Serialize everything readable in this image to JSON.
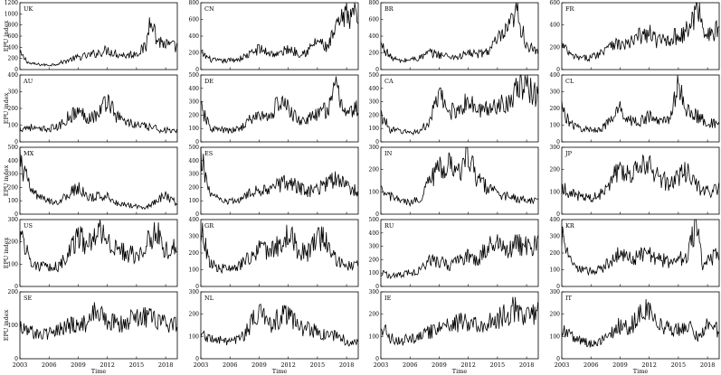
{
  "figure": {
    "type": "line",
    "ylabel": "EPU index",
    "xlabel": "Time",
    "x_tick_labels": [
      "2003",
      "2006",
      "2009",
      "2012",
      "2015",
      "2018"
    ],
    "colors": {
      "line": "#000000",
      "frame": "#000000",
      "background": "#ffffff"
    }
  },
  "chart_data": [
    {
      "type": "line",
      "label": "UK",
      "ylim": [
        0,
        1200
      ],
      "yticks": [
        0,
        200,
        400,
        600,
        800,
        1000,
        1200
      ],
      "x": [
        2003,
        2004,
        2005,
        2006,
        2007,
        2008,
        2009,
        2010,
        2011,
        2012,
        2013,
        2014,
        2015,
        2016,
        2016.5,
        2017,
        2018,
        2019
      ],
      "values": [
        280,
        110,
        90,
        80,
        110,
        170,
        220,
        250,
        300,
        350,
        280,
        250,
        300,
        400,
        1100,
        550,
        450,
        400
      ]
    },
    {
      "type": "line",
      "label": "CN",
      "ylim": [
        0,
        800
      ],
      "yticks": [
        0,
        200,
        400,
        600,
        800
      ],
      "x": [
        2003,
        2004,
        2005,
        2006,
        2007,
        2008,
        2009,
        2010,
        2011,
        2012,
        2013,
        2014,
        2015,
        2016,
        2017,
        2018,
        2019
      ],
      "values": [
        200,
        120,
        100,
        110,
        130,
        180,
        250,
        200,
        180,
        250,
        200,
        220,
        350,
        250,
        500,
        650,
        700
      ]
    },
    {
      "type": "line",
      "label": "BR",
      "ylim": [
        0,
        800
      ],
      "yticks": [
        0,
        200,
        400,
        600,
        800
      ],
      "x": [
        2003,
        2004,
        2005,
        2006,
        2007,
        2008,
        2009,
        2010,
        2011,
        2012,
        2013,
        2014,
        2015,
        2016,
        2017,
        2018,
        2019
      ],
      "values": [
        300,
        150,
        100,
        120,
        140,
        200,
        180,
        160,
        150,
        200,
        180,
        220,
        350,
        450,
        680,
        300,
        200
      ]
    },
    {
      "type": "line",
      "label": "FR",
      "ylim": [
        0,
        600
      ],
      "yticks": [
        0,
        200,
        400,
        600
      ],
      "x": [
        2003,
        2004,
        2005,
        2006,
        2007,
        2008,
        2009,
        2010,
        2011,
        2012,
        2013,
        2014,
        2015,
        2016,
        2017,
        2018,
        2019
      ],
      "values": [
        220,
        120,
        100,
        110,
        150,
        250,
        220,
        230,
        300,
        320,
        250,
        280,
        300,
        350,
        560,
        300,
        350
      ]
    },
    {
      "type": "line",
      "label": "AU",
      "ylim": [
        0,
        400
      ],
      "yticks": [
        0,
        100,
        200,
        300,
        400
      ],
      "x": [
        2003,
        2004,
        2005,
        2006,
        2007,
        2008,
        2009,
        2010,
        2011,
        2012,
        2013,
        2014,
        2015,
        2016,
        2017,
        2018,
        2019
      ],
      "values": [
        80,
        90,
        70,
        80,
        90,
        150,
        180,
        150,
        160,
        260,
        150,
        120,
        100,
        90,
        80,
        70,
        60
      ]
    },
    {
      "type": "line",
      "label": "DE",
      "ylim": [
        0,
        500
      ],
      "yticks": [
        0,
        100,
        200,
        300,
        400,
        500
      ],
      "x": [
        2003,
        2004,
        2005,
        2006,
        2007,
        2008,
        2009,
        2010,
        2011,
        2012,
        2013,
        2014,
        2015,
        2016,
        2017,
        2018,
        2019
      ],
      "values": [
        250,
        100,
        90,
        80,
        100,
        160,
        200,
        180,
        300,
        250,
        160,
        170,
        200,
        250,
        400,
        200,
        250
      ]
    },
    {
      "type": "line",
      "label": "CA",
      "ylim": [
        0,
        500
      ],
      "yticks": [
        0,
        100,
        200,
        300,
        400,
        500
      ],
      "x": [
        2003,
        2004,
        2005,
        2006,
        2007,
        2008,
        2009,
        2010,
        2011,
        2012,
        2013,
        2014,
        2015,
        2016,
        2017,
        2018,
        2019
      ],
      "values": [
        200,
        90,
        80,
        70,
        80,
        150,
        350,
        220,
        250,
        300,
        230,
        250,
        280,
        300,
        380,
        420,
        350
      ]
    },
    {
      "type": "line",
      "label": "CL",
      "ylim": [
        0,
        400
      ],
      "yticks": [
        0,
        100,
        200,
        300,
        400
      ],
      "x": [
        2003,
        2004,
        2005,
        2006,
        2007,
        2008,
        2009,
        2010,
        2011,
        2012,
        2013,
        2014,
        2015,
        2016,
        2017,
        2018,
        2019
      ],
      "values": [
        200,
        100,
        80,
        70,
        80,
        120,
        200,
        130,
        120,
        150,
        120,
        140,
        330,
        180,
        150,
        120,
        100
      ]
    },
    {
      "type": "line",
      "label": "MX",
      "ylim": [
        0,
        500
      ],
      "yticks": [
        0,
        100,
        200,
        300,
        400,
        500
      ],
      "x": [
        2003,
        2004,
        2005,
        2006,
        2007,
        2008,
        2009,
        2010,
        2011,
        2012,
        2013,
        2014,
        2015,
        2016,
        2017,
        2018,
        2019
      ],
      "values": [
        400,
        200,
        120,
        100,
        90,
        150,
        200,
        120,
        130,
        140,
        80,
        70,
        60,
        50,
        100,
        140,
        90
      ]
    },
    {
      "type": "line",
      "label": "ES",
      "ylim": [
        0,
        500
      ],
      "yticks": [
        0,
        100,
        200,
        300,
        400,
        500
      ],
      "x": [
        2003,
        2004,
        2005,
        2006,
        2007,
        2008,
        2009,
        2010,
        2011,
        2012,
        2013,
        2014,
        2015,
        2016,
        2017,
        2018,
        2019
      ],
      "values": [
        420,
        150,
        100,
        90,
        110,
        150,
        180,
        200,
        220,
        240,
        200,
        170,
        190,
        230,
        280,
        200,
        180
      ]
    },
    {
      "type": "line",
      "label": "IN",
      "ylim": [
        0,
        300
      ],
      "yticks": [
        0,
        100,
        200,
        300
      ],
      "x": [
        2003,
        2004,
        2005,
        2006,
        2007,
        2008,
        2009,
        2010,
        2011,
        2012,
        2013,
        2014,
        2015,
        2016,
        2017,
        2018,
        2019
      ],
      "values": [
        100,
        80,
        60,
        50,
        70,
        150,
        200,
        230,
        180,
        270,
        150,
        120,
        90,
        80,
        70,
        60,
        60
      ]
    },
    {
      "type": "line",
      "label": "JP",
      "ylim": [
        0,
        300
      ],
      "yticks": [
        0,
        100,
        200,
        300
      ],
      "x": [
        2003,
        2004,
        2005,
        2006,
        2007,
        2008,
        2009,
        2010,
        2011,
        2012,
        2013,
        2014,
        2015,
        2016,
        2017,
        2018,
        2019
      ],
      "values": [
        120,
        90,
        80,
        70,
        90,
        150,
        220,
        180,
        200,
        220,
        160,
        140,
        160,
        210,
        120,
        100,
        110
      ]
    },
    {
      "type": "line",
      "label": "US",
      "ylim": [
        0,
        300
      ],
      "yticks": [
        0,
        100,
        200,
        300
      ],
      "x": [
        2003,
        2004,
        2005,
        2006,
        2007,
        2008,
        2009,
        2010,
        2011,
        2012,
        2013,
        2014,
        2015,
        2016,
        2017,
        2018,
        2019
      ],
      "values": [
        250,
        120,
        90,
        80,
        90,
        150,
        230,
        180,
        280,
        200,
        170,
        150,
        140,
        200,
        250,
        160,
        180
      ]
    },
    {
      "type": "line",
      "label": "GR",
      "ylim": [
        0,
        400
      ],
      "yticks": [
        0,
        100,
        200,
        300,
        400
      ],
      "x": [
        2003,
        2004,
        2005,
        2006,
        2007,
        2008,
        2009,
        2010,
        2011,
        2012,
        2013,
        2014,
        2015,
        2016,
        2017,
        2018,
        2019
      ],
      "values": [
        340,
        130,
        110,
        100,
        120,
        180,
        220,
        200,
        250,
        320,
        220,
        200,
        300,
        280,
        150,
        130,
        120
      ]
    },
    {
      "type": "line",
      "label": "RU",
      "ylim": [
        0,
        500
      ],
      "yticks": [
        0,
        100,
        200,
        300,
        400,
        500
      ],
      "x": [
        2003,
        2004,
        2005,
        2006,
        2007,
        2008,
        2009,
        2010,
        2011,
        2012,
        2013,
        2014,
        2015,
        2016,
        2017,
        2018,
        2019
      ],
      "values": [
        100,
        80,
        90,
        100,
        120,
        200,
        180,
        160,
        200,
        230,
        200,
        300,
        350,
        280,
        330,
        300,
        320
      ]
    },
    {
      "type": "line",
      "label": "KR",
      "ylim": [
        0,
        400
      ],
      "yticks": [
        0,
        100,
        200,
        300,
        400
      ],
      "x": [
        2003,
        2004,
        2005,
        2006,
        2007,
        2008,
        2009,
        2010,
        2011,
        2012,
        2013,
        2014,
        2015,
        2016,
        2016.8,
        2017.5,
        2019
      ],
      "values": [
        300,
        130,
        100,
        90,
        100,
        150,
        200,
        170,
        180,
        200,
        160,
        150,
        160,
        180,
        390,
        120,
        200
      ]
    },
    {
      "type": "line",
      "label": "SE",
      "ylim": [
        0,
        200
      ],
      "yticks": [
        0,
        100,
        200
      ],
      "x": [
        2003,
        2004,
        2005,
        2006,
        2007,
        2008,
        2009,
        2010,
        2011,
        2012,
        2013,
        2014,
        2015,
        2016,
        2017,
        2018,
        2019
      ],
      "values": [
        100,
        80,
        70,
        75,
        85,
        100,
        110,
        100,
        150,
        110,
        105,
        110,
        120,
        125,
        115,
        110,
        100
      ]
    },
    {
      "type": "line",
      "label": "NL",
      "ylim": [
        0,
        300
      ],
      "yticks": [
        0,
        100,
        200,
        300
      ],
      "x": [
        2003,
        2004,
        2005,
        2006,
        2007,
        2008,
        2009,
        2010,
        2011,
        2012,
        2013,
        2014,
        2015,
        2016,
        2017,
        2018,
        2019
      ],
      "values": [
        110,
        90,
        80,
        70,
        90,
        140,
        220,
        150,
        180,
        200,
        140,
        130,
        120,
        110,
        100,
        80,
        70
      ]
    },
    {
      "type": "line",
      "label": "IE",
      "ylim": [
        0,
        300
      ],
      "yticks": [
        0,
        100,
        200,
        300
      ],
      "x": [
        2003,
        2004,
        2005,
        2006,
        2007,
        2008,
        2009,
        2010,
        2011,
        2012,
        2013,
        2014,
        2015,
        2016,
        2017,
        2018,
        2019
      ],
      "values": [
        150,
        90,
        80,
        90,
        100,
        120,
        140,
        150,
        160,
        170,
        150,
        160,
        180,
        200,
        230,
        180,
        200
      ]
    },
    {
      "type": "line",
      "label": "IT",
      "ylim": [
        0,
        300
      ],
      "yticks": [
        0,
        100,
        200,
        300
      ],
      "x": [
        2003,
        2004,
        2005,
        2006,
        2007,
        2008,
        2009,
        2010,
        2011,
        2012,
        2013,
        2014,
        2015,
        2016,
        2017,
        2018,
        2019
      ],
      "values": [
        130,
        100,
        80,
        70,
        80,
        110,
        150,
        140,
        200,
        220,
        150,
        130,
        140,
        160,
        90,
        150,
        130
      ]
    }
  ]
}
